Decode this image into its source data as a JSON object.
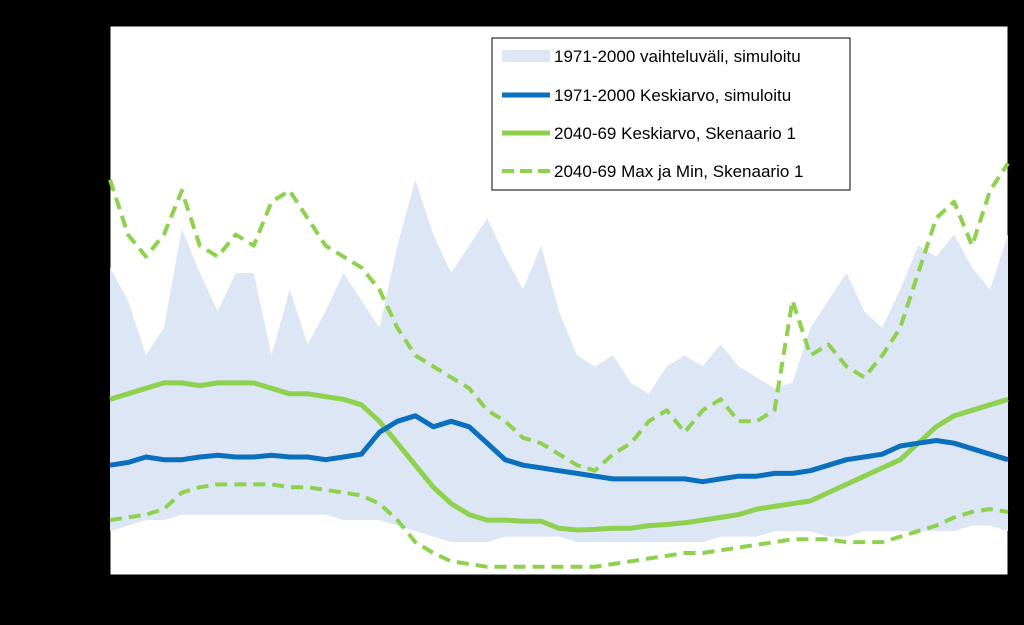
{
  "colors": {
    "background": "#000000",
    "plot_area": "#ffffff",
    "range_fill": "#dce6f4",
    "mean_1971": "#0a6fbd",
    "mean_2040": "#8ed14f",
    "maxmin_2040": "#8ed14f"
  },
  "chart_data": {
    "type": "area",
    "title": "",
    "xlabel": "",
    "ylabel": "",
    "xlim": [
      0,
      1
    ],
    "ylim": [
      0,
      100
    ],
    "grid": false,
    "legend_position": "top-right",
    "x": [
      0.0,
      0.02,
      0.04,
      0.06,
      0.08,
      0.1,
      0.12,
      0.14,
      0.16,
      0.18,
      0.2,
      0.22,
      0.24,
      0.26,
      0.28,
      0.3,
      0.32,
      0.34,
      0.36,
      0.38,
      0.4,
      0.42,
      0.44,
      0.46,
      0.48,
      0.5,
      0.52,
      0.54,
      0.56,
      0.58,
      0.6,
      0.62,
      0.64,
      0.66,
      0.68,
      0.7,
      0.72,
      0.74,
      0.76,
      0.78,
      0.8,
      0.82,
      0.84,
      0.86,
      0.88,
      0.9,
      0.92,
      0.94,
      0.96,
      0.98,
      1.0
    ],
    "series": [
      {
        "name": "1971-2000 vaihteluväli, simuloitu",
        "kind": "band",
        "upper": [
          56,
          50,
          40,
          45,
          63,
          55,
          48,
          55,
          55,
          40,
          52,
          42,
          48,
          55,
          50,
          45,
          60,
          72,
          62,
          55,
          60,
          65,
          58,
          52,
          60,
          48,
          40,
          38,
          40,
          35,
          33,
          38,
          40,
          38,
          42,
          38,
          36,
          34,
          35,
          45,
          50,
          55,
          48,
          45,
          52,
          60,
          58,
          62,
          56,
          52,
          62
        ],
        "lower": [
          8,
          9,
          10,
          10,
          11,
          11,
          11,
          11,
          11,
          11,
          11,
          11,
          11,
          10,
          10,
          10,
          9,
          8,
          7,
          6,
          6,
          6,
          7,
          7,
          7,
          7,
          6,
          6,
          6,
          6,
          6,
          6,
          6,
          6,
          7,
          7,
          7,
          8,
          8,
          8,
          7,
          7,
          8,
          8,
          8,
          8,
          8,
          8,
          9,
          9,
          8
        ]
      },
      {
        "name": "1971-2000 Keskiarvo, simuloitu",
        "kind": "line",
        "values": [
          20,
          20.5,
          21.5,
          21,
          21,
          21.5,
          21.8,
          21.5,
          21.5,
          21.8,
          21.5,
          21.5,
          21,
          21.5,
          22,
          26,
          28,
          29,
          27,
          28,
          27,
          24,
          21,
          20,
          19.5,
          19,
          18.5,
          18,
          17.5,
          17.5,
          17.5,
          17.5,
          17.5,
          17,
          17.5,
          18,
          18,
          18.5,
          18.5,
          19,
          20,
          21,
          21.5,
          22,
          23.5,
          24,
          24.5,
          24,
          23,
          22,
          21
        ]
      },
      {
        "name": "2040-69 Keskiarvo, Skenaario 1",
        "kind": "line",
        "values": [
          32,
          33,
          34,
          35,
          35,
          34.5,
          35,
          35,
          35,
          34,
          33,
          33,
          32.5,
          32,
          31,
          28,
          24,
          20,
          16,
          13,
          11,
          10,
          10,
          9.8,
          9.8,
          8.5,
          8.2,
          8.3,
          8.5,
          8.5,
          9,
          9.2,
          9.5,
          10,
          10.5,
          11,
          12,
          12.5,
          13,
          13.5,
          15,
          16.5,
          18,
          19.5,
          21,
          24,
          27,
          29,
          30,
          31,
          32
        ]
      },
      {
        "name": "2040-69 Max ja Min, Skenaario 1",
        "kind": "band-dashed",
        "upper": [
          72,
          62,
          58,
          62,
          70,
          60,
          58,
          62,
          60,
          68,
          70,
          65,
          60,
          58,
          56,
          52,
          45,
          40,
          38,
          36,
          34,
          30,
          28,
          25,
          24,
          22,
          20,
          19,
          22,
          24,
          28,
          30,
          26,
          30,
          32,
          28,
          28,
          30,
          50,
          40,
          42,
          38,
          36,
          40,
          45,
          55,
          65,
          68,
          60,
          70,
          75
        ],
        "lower": [
          10,
          10.5,
          11,
          12,
          15,
          16,
          16.5,
          16.5,
          16.5,
          16.5,
          16,
          16,
          15.5,
          15,
          14.5,
          13,
          10,
          6,
          4,
          2.5,
          2,
          1.5,
          1.5,
          1.5,
          1.5,
          1.5,
          1.5,
          1.5,
          2,
          2.5,
          3,
          3.5,
          4,
          4,
          4.5,
          5,
          5.5,
          6,
          6.5,
          6.5,
          6.5,
          6,
          6,
          6,
          7,
          8,
          9,
          10.5,
          11.5,
          12,
          11.5
        ]
      }
    ]
  },
  "legend": {
    "items": [
      {
        "label": "1971-2000 vaihteluväli, simuloitu"
      },
      {
        "label": "1971-2000 Keskiarvo, simuloitu"
      },
      {
        "label": "2040-69 Keskiarvo, Skenaario 1"
      },
      {
        "label": "2040-69 Max ja Min, Skenaario 1"
      }
    ]
  }
}
